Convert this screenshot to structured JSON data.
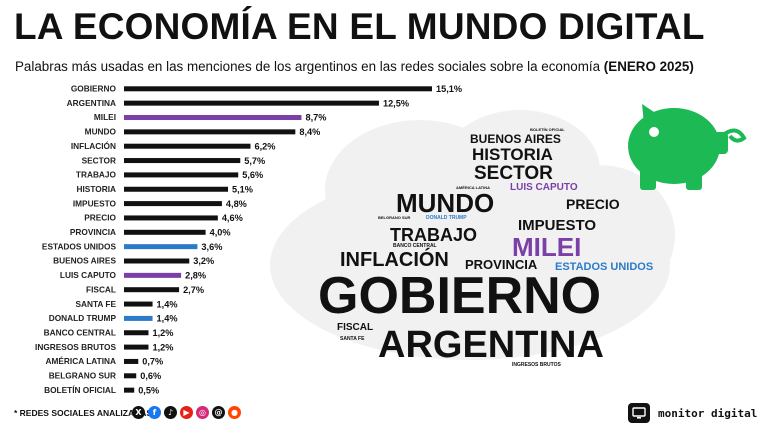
{
  "header": {
    "title": "LA ECONOMÍA EN EL MUNDO DIGITAL",
    "subtitle": "Palabras más usadas en las menciones de los argentinos en las redes sociales sobre la economía",
    "subtitle_period": "(ENERO 2025)"
  },
  "colors": {
    "bar_default": "#111111",
    "bar_purple": "#7b3fa8",
    "bar_blue": "#2b7bc9",
    "piggy": "#1db954",
    "cloud": "#f1f1f1"
  },
  "chart_data": {
    "type": "bar",
    "orientation": "horizontal",
    "categories": [
      "GOBIERNO",
      "ARGENTINA",
      "MILEI",
      "MUNDO",
      "INFLACIÓN",
      "SECTOR",
      "TRABAJO",
      "HISTORIA",
      "IMPUESTO",
      "PRECIO",
      "PROVINCIA",
      "ESTADOS UNIDOS",
      "BUENOS AIRES",
      "LUIS CAPUTO",
      "FISCAL",
      "SANTA FE",
      "DONALD TRUMP",
      "BANCO CENTRAL",
      "INGRESOS BRUTOS",
      "AMÉRICA LATINA",
      "BELGRANO SUR",
      "BOLETÍN OFICIAL"
    ],
    "values": [
      15.1,
      12.5,
      8.7,
      8.4,
      6.2,
      5.7,
      5.6,
      5.1,
      4.8,
      4.6,
      4.0,
      3.6,
      3.2,
      2.8,
      2.7,
      1.4,
      1.4,
      1.2,
      1.2,
      0.7,
      0.6,
      0.5
    ],
    "value_labels": [
      "15,1%",
      "12,5%",
      "8,7%",
      "8,4%",
      "6,2%",
      "5,7%",
      "5,6%",
      "5,1%",
      "4,8%",
      "4,6%",
      "4,0%",
      "3,6%",
      "3,2%",
      "2,8%",
      "2,7%",
      "1,4%",
      "1,4%",
      "1,2%",
      "1,2%",
      "0,7%",
      "0,6%",
      "0,5%"
    ],
    "bar_colors": [
      "#111111",
      "#111111",
      "#7b3fa8",
      "#111111",
      "#111111",
      "#111111",
      "#111111",
      "#111111",
      "#111111",
      "#111111",
      "#111111",
      "#2b7bc9",
      "#111111",
      "#7b3fa8",
      "#111111",
      "#111111",
      "#2b7bc9",
      "#111111",
      "#111111",
      "#111111",
      "#111111",
      "#111111"
    ],
    "xlim": [
      0,
      15.1
    ]
  },
  "word_cloud": {
    "words": [
      {
        "text": "GOBIERNO",
        "color": "#111111",
        "weight": "xl"
      },
      {
        "text": "ARGENTINA",
        "color": "#111111",
        "weight": "l"
      },
      {
        "text": "MILEI",
        "color": "#7b3fa8",
        "weight": "m"
      },
      {
        "text": "MUNDO",
        "color": "#111111",
        "weight": "m"
      },
      {
        "text": "INFLACIÓN",
        "color": "#111111",
        "weight": "m"
      },
      {
        "text": "TRABAJO",
        "color": "#111111",
        "weight": "s"
      },
      {
        "text": "HISTORIA",
        "color": "#111111",
        "weight": "s"
      },
      {
        "text": "SECTOR",
        "color": "#111111",
        "weight": "s"
      },
      {
        "text": "IMPUESTO",
        "color": "#111111",
        "weight": "s"
      },
      {
        "text": "PRECIO",
        "color": "#111111",
        "weight": "s"
      },
      {
        "text": "PROVINCIA",
        "color": "#111111",
        "weight": "xs"
      },
      {
        "text": "BUENOS AIRES",
        "color": "#111111",
        "weight": "xs"
      },
      {
        "text": "ESTADOS UNIDOS",
        "color": "#2b7bc9",
        "weight": "xs"
      },
      {
        "text": "LUIS CAPUTO",
        "color": "#7b3fa8",
        "weight": "xs"
      },
      {
        "text": "FISCAL",
        "color": "#111111",
        "weight": "xs"
      },
      {
        "text": "DONALD TRUMP",
        "color": "#2b7bc9",
        "weight": "xxs"
      },
      {
        "text": "BANCO CENTRAL",
        "color": "#111111",
        "weight": "xxs"
      },
      {
        "text": "SANTA FE",
        "color": "#111111",
        "weight": "xxs"
      },
      {
        "text": "INGRESOS BRUTOS",
        "color": "#111111",
        "weight": "xxs"
      },
      {
        "text": "AMÉRICA LATINA",
        "color": "#111111",
        "weight": "xxs"
      },
      {
        "text": "BELGRANO SUR",
        "color": "#111111",
        "weight": "xxs"
      },
      {
        "text": "BOLETÍN OFICIAL",
        "color": "#111111",
        "weight": "xxs"
      }
    ]
  },
  "footer": {
    "note": "* REDES SOCIALES ANALIZADAS",
    "networks": [
      {
        "icon": "x-icon",
        "glyph": "X",
        "color": "#111111"
      },
      {
        "icon": "facebook-icon",
        "glyph": "f",
        "color": "#1877f2"
      },
      {
        "icon": "tiktok-icon",
        "glyph": "♪",
        "color": "#111111"
      },
      {
        "icon": "youtube-icon",
        "glyph": "▶",
        "color": "#e62117"
      },
      {
        "icon": "instagram-icon",
        "glyph": "◎",
        "color": "#d62976"
      },
      {
        "icon": "threads-icon",
        "glyph": "@",
        "color": "#111111"
      },
      {
        "icon": "reddit-icon",
        "glyph": "●",
        "color": "#ff4500"
      }
    ],
    "brand_name": "monitor digital"
  }
}
